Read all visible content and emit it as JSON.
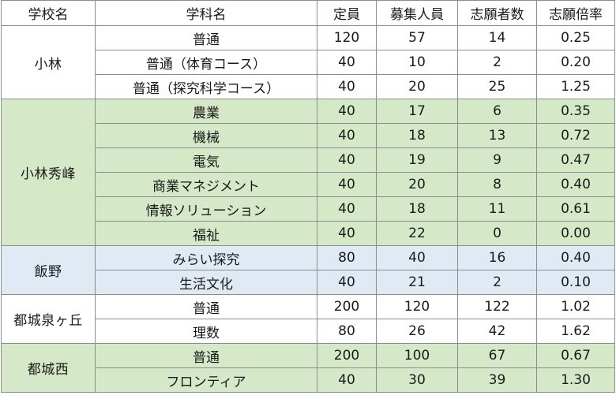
{
  "headers": [
    "学校名",
    "学科名",
    "定員",
    "募集人員",
    "志願者数",
    "志願倍率"
  ],
  "rows": [
    {
      "school": "小林",
      "dept": "普通",
      "capacity": "120",
      "recruit": "57",
      "applicants": "14",
      "ratio": "0.25"
    },
    {
      "dept": "普通（体育コース）",
      "capacity": "40",
      "recruit": "10",
      "applicants": "2",
      "ratio": "0.20"
    },
    {
      "dept": "普通（探究科学コース）",
      "capacity": "40",
      "recruit": "20",
      "applicants": "25",
      "ratio": "1.25"
    },
    {
      "school": "小林秀峰",
      "dept": "農業",
      "capacity": "40",
      "recruit": "17",
      "applicants": "6",
      "ratio": "0.35"
    },
    {
      "dept": "機械",
      "capacity": "40",
      "recruit": "18",
      "applicants": "13",
      "ratio": "0.72"
    },
    {
      "dept": "電気",
      "capacity": "40",
      "recruit": "19",
      "applicants": "9",
      "ratio": "0.47"
    },
    {
      "dept": "商業マネジメント",
      "capacity": "40",
      "recruit": "20",
      "applicants": "8",
      "ratio": "0.40"
    },
    {
      "dept": "情報ソリューション",
      "capacity": "40",
      "recruit": "18",
      "applicants": "11",
      "ratio": "0.61"
    },
    {
      "dept": "福祉",
      "capacity": "40",
      "recruit": "22",
      "applicants": "0",
      "ratio": "0.00"
    },
    {
      "school": "飯野",
      "dept": "みらい探究",
      "capacity": "80",
      "recruit": "40",
      "applicants": "16",
      "ratio": "0.40"
    },
    {
      "dept": "生活文化",
      "capacity": "40",
      "recruit": "21",
      "applicants": "2",
      "ratio": "0.10"
    },
    {
      "school": "都城泉ヶ丘",
      "dept": "普通",
      "capacity": "200",
      "recruit": "120",
      "applicants": "122",
      "ratio": "1.02"
    },
    {
      "dept": "理数",
      "capacity": "80",
      "recruit": "26",
      "applicants": "42",
      "ratio": "1.62"
    },
    {
      "school": "都城西",
      "dept": "普通",
      "capacity": "200",
      "recruit": "100",
      "applicants": "67",
      "ratio": "0.67"
    },
    {
      "dept": "フロンティア",
      "capacity": "40",
      "recruit": "30",
      "applicants": "39",
      "ratio": "1.30"
    }
  ],
  "colors": {
    "green_band": "#d5e8c8",
    "blue_band": "#dfeaf5",
    "border": "#8c8c8c"
  }
}
